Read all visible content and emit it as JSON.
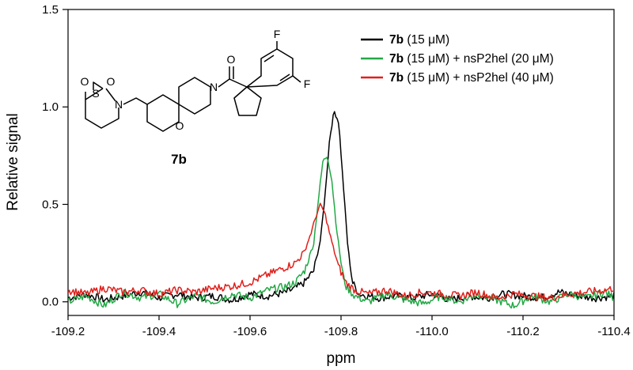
{
  "chart_data": {
    "type": "line",
    "xlabel": "ppm",
    "ylabel": "Relative signal",
    "xlim": [
      -109.2,
      -110.4
    ],
    "ylim": [
      -0.07,
      1.5
    ],
    "x_reversed": true,
    "x_ticks": [
      -109.2,
      -109.4,
      -109.6,
      -109.8,
      -110.0,
      -110.2,
      -110.4
    ],
    "x_tick_labels": [
      "-109.2",
      "-109.4",
      "-109.6",
      "-109.8",
      "-110.0",
      "-110.2",
      "-110.4"
    ],
    "y_ticks": [
      0.0,
      0.5,
      1.0,
      1.5
    ],
    "y_tick_labels": [
      "0.0",
      "0.5",
      "1.0",
      "1.5"
    ],
    "grid": false,
    "legend_position": "top-right",
    "series": [
      {
        "name_bold": "7b",
        "name_rest": " (15 μM)",
        "color": "#000000",
        "peak_ppm": -109.785,
        "peak_height": 0.98,
        "peak_width": 0.018,
        "points": [
          [
            -109.2,
            0.02
          ],
          [
            -109.24,
            0.04
          ],
          [
            -109.28,
            0.01
          ],
          [
            -109.32,
            0.03
          ],
          [
            -109.36,
            0.05
          ],
          [
            -109.4,
            0.02
          ],
          [
            -109.44,
            0.04
          ],
          [
            -109.48,
            0.02
          ],
          [
            -109.52,
            0.03
          ],
          [
            -109.56,
            0.01
          ],
          [
            -109.6,
            0.04
          ],
          [
            -109.64,
            0.03
          ],
          [
            -109.68,
            0.05
          ],
          [
            -109.7,
            0.07
          ],
          [
            -109.72,
            0.1
          ],
          [
            -109.74,
            0.16
          ],
          [
            -109.755,
            0.32
          ],
          [
            -109.765,
            0.55
          ],
          [
            -109.775,
            0.84
          ],
          [
            -109.785,
            0.98
          ],
          [
            -109.795,
            0.92
          ],
          [
            -109.805,
            0.6
          ],
          [
            -109.815,
            0.28
          ],
          [
            -109.825,
            0.1
          ],
          [
            -109.84,
            0.04
          ],
          [
            -109.88,
            0.02
          ],
          [
            -109.92,
            0.03
          ],
          [
            -109.96,
            0.02
          ],
          [
            -110.0,
            0.04
          ],
          [
            -110.04,
            0.01
          ],
          [
            -110.08,
            0.03
          ],
          [
            -110.12,
            0.02
          ],
          [
            -110.16,
            0.04
          ],
          [
            -110.2,
            0.03
          ],
          [
            -110.24,
            0.02
          ],
          [
            -110.28,
            0.05
          ],
          [
            -110.32,
            0.03
          ],
          [
            -110.36,
            0.02
          ],
          [
            -110.4,
            0.03
          ]
        ]
      },
      {
        "name_bold": "7b",
        "name_rest": " (15 μM) + nsP2hel (20 μM)",
        "color": "#22a845",
        "peak_ppm": -109.77,
        "peak_height": 0.75,
        "peak_width": 0.022,
        "points": [
          [
            -109.2,
            0.0
          ],
          [
            -109.24,
            0.03
          ],
          [
            -109.28,
            -0.02
          ],
          [
            -109.32,
            0.05
          ],
          [
            -109.36,
            0.02
          ],
          [
            -109.4,
            0.04
          ],
          [
            -109.44,
            -0.01
          ],
          [
            -109.48,
            0.03
          ],
          [
            -109.52,
            0.0
          ],
          [
            -109.56,
            0.04
          ],
          [
            -109.6,
            0.02
          ],
          [
            -109.64,
            0.06
          ],
          [
            -109.68,
            0.08
          ],
          [
            -109.7,
            0.1
          ],
          [
            -109.72,
            0.16
          ],
          [
            -109.74,
            0.3
          ],
          [
            -109.75,
            0.52
          ],
          [
            -109.76,
            0.72
          ],
          [
            -109.77,
            0.75
          ],
          [
            -109.78,
            0.62
          ],
          [
            -109.79,
            0.38
          ],
          [
            -109.8,
            0.2
          ],
          [
            -109.81,
            0.08
          ],
          [
            -109.83,
            0.03
          ],
          [
            -109.86,
            0.0
          ],
          [
            -109.9,
            0.04
          ],
          [
            -109.94,
            0.01
          ],
          [
            -109.98,
            -0.01
          ],
          [
            -110.02,
            0.03
          ],
          [
            -110.06,
            0.0
          ],
          [
            -110.1,
            0.04
          ],
          [
            -110.14,
            0.01
          ],
          [
            -110.18,
            -0.02
          ],
          [
            -110.22,
            0.03
          ],
          [
            -110.26,
            0.0
          ],
          [
            -110.3,
            0.04
          ],
          [
            -110.34,
            0.02
          ],
          [
            -110.38,
            0.05
          ],
          [
            -110.4,
            0.02
          ]
        ]
      },
      {
        "name_bold": "7b",
        "name_rest": " (15 μM) + nsP2hel (40 μM)",
        "color": "#e0201c",
        "peak_ppm": -109.755,
        "peak_height": 0.5,
        "peak_width": 0.03,
        "points": [
          [
            -109.2,
            0.06
          ],
          [
            -109.24,
            0.04
          ],
          [
            -109.28,
            0.07
          ],
          [
            -109.32,
            0.05
          ],
          [
            -109.36,
            0.06
          ],
          [
            -109.4,
            0.04
          ],
          [
            -109.44,
            0.06
          ],
          [
            -109.48,
            0.05
          ],
          [
            -109.52,
            0.07
          ],
          [
            -109.56,
            0.08
          ],
          [
            -109.6,
            0.1
          ],
          [
            -109.64,
            0.14
          ],
          [
            -109.68,
            0.18
          ],
          [
            -109.7,
            0.2
          ],
          [
            -109.72,
            0.26
          ],
          [
            -109.735,
            0.36
          ],
          [
            -109.745,
            0.44
          ],
          [
            -109.755,
            0.5
          ],
          [
            -109.765,
            0.45
          ],
          [
            -109.775,
            0.35
          ],
          [
            -109.785,
            0.26
          ],
          [
            -109.795,
            0.18
          ],
          [
            -109.81,
            0.1
          ],
          [
            -109.83,
            0.06
          ],
          [
            -109.86,
            0.04
          ],
          [
            -109.9,
            0.06
          ],
          [
            -109.94,
            0.03
          ],
          [
            -109.98,
            0.05
          ],
          [
            -110.02,
            0.04
          ],
          [
            -110.06,
            0.03
          ],
          [
            -110.1,
            0.05
          ],
          [
            -110.14,
            0.02
          ],
          [
            -110.18,
            0.04
          ],
          [
            -110.22,
            0.03
          ],
          [
            -110.26,
            0.02
          ],
          [
            -110.3,
            0.04
          ],
          [
            -110.34,
            0.05
          ],
          [
            -110.38,
            0.06
          ],
          [
            -110.4,
            0.07
          ]
        ]
      }
    ]
  },
  "molecule": {
    "compound_label": "7b",
    "atom_labels": {
      "O1": "O",
      "O2": "O",
      "S": "S",
      "N1": "N",
      "N2": "N",
      "O_ring": "O",
      "O_carbonyl": "O",
      "F1": "F",
      "F2": "F"
    }
  }
}
